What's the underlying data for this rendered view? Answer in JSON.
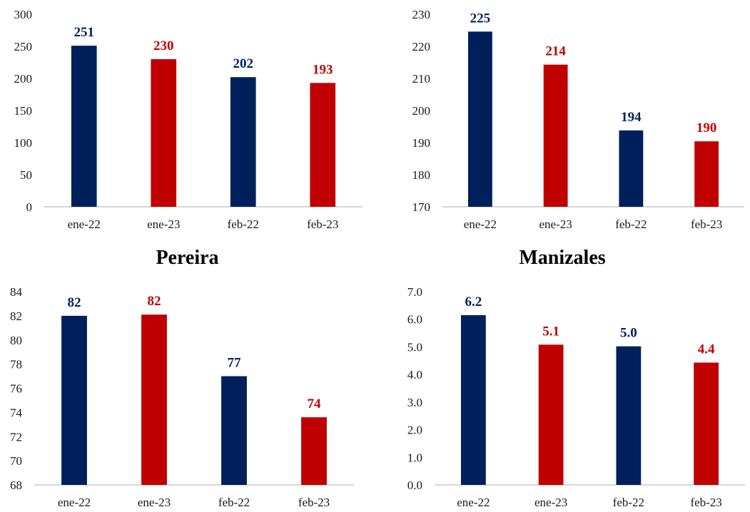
{
  "titles": {
    "left": "Pereira",
    "right": "Manizales"
  },
  "colors": {
    "navy": "#00205b",
    "red": "#c00000"
  },
  "chart_data": [
    {
      "type": "bar",
      "title": "",
      "categories": [
        "ene-22",
        "ene-23",
        "feb-22",
        "feb-23"
      ],
      "values": [
        251,
        230,
        202,
        193
      ],
      "labels": [
        "251",
        "230",
        "202",
        "193"
      ],
      "ylim": [
        0,
        300
      ],
      "yticks": [
        "0",
        "50",
        "100",
        "150",
        "200",
        "250",
        "300"
      ],
      "bar_colors": [
        "#00205b",
        "#c00000",
        "#00205b",
        "#c00000"
      ]
    },
    {
      "type": "bar",
      "title": "",
      "categories": [
        "ene-22",
        "ene-23",
        "feb-22",
        "feb-23"
      ],
      "values": [
        224.6,
        214.3,
        193.8,
        190.4
      ],
      "labels": [
        "225",
        "214",
        "194",
        "190"
      ],
      "ylim": [
        170,
        230
      ],
      "yticks": [
        "170",
        "180",
        "190",
        "200",
        "210",
        "220",
        "230"
      ],
      "bar_colors": [
        "#00205b",
        "#c00000",
        "#00205b",
        "#c00000"
      ]
    },
    {
      "type": "bar",
      "title": "Pereira",
      "categories": [
        "ene-22",
        "ene-23",
        "feb-22",
        "feb-23"
      ],
      "values": [
        82.0,
        82.1,
        77.0,
        73.6
      ],
      "labels": [
        "82",
        "82",
        "77",
        "74"
      ],
      "ylim": [
        68,
        84
      ],
      "yticks": [
        "68",
        "70",
        "72",
        "74",
        "76",
        "78",
        "80",
        "82",
        "84"
      ],
      "bar_colors": [
        "#00205b",
        "#c00000",
        "#00205b",
        "#c00000"
      ]
    },
    {
      "type": "bar",
      "title": "Manizales",
      "categories": [
        "ene-22",
        "ene-23",
        "feb-22",
        "feb-23"
      ],
      "values": [
        6.15,
        5.08,
        5.02,
        4.43
      ],
      "labels": [
        "6.2",
        "5.1",
        "5.0",
        "4.4"
      ],
      "ylim": [
        0,
        7
      ],
      "yticks": [
        "0.0",
        "1.0",
        "2.0",
        "3.0",
        "4.0",
        "5.0",
        "6.0",
        "7.0"
      ],
      "bar_colors": [
        "#00205b",
        "#c00000",
        "#00205b",
        "#c00000"
      ]
    }
  ]
}
